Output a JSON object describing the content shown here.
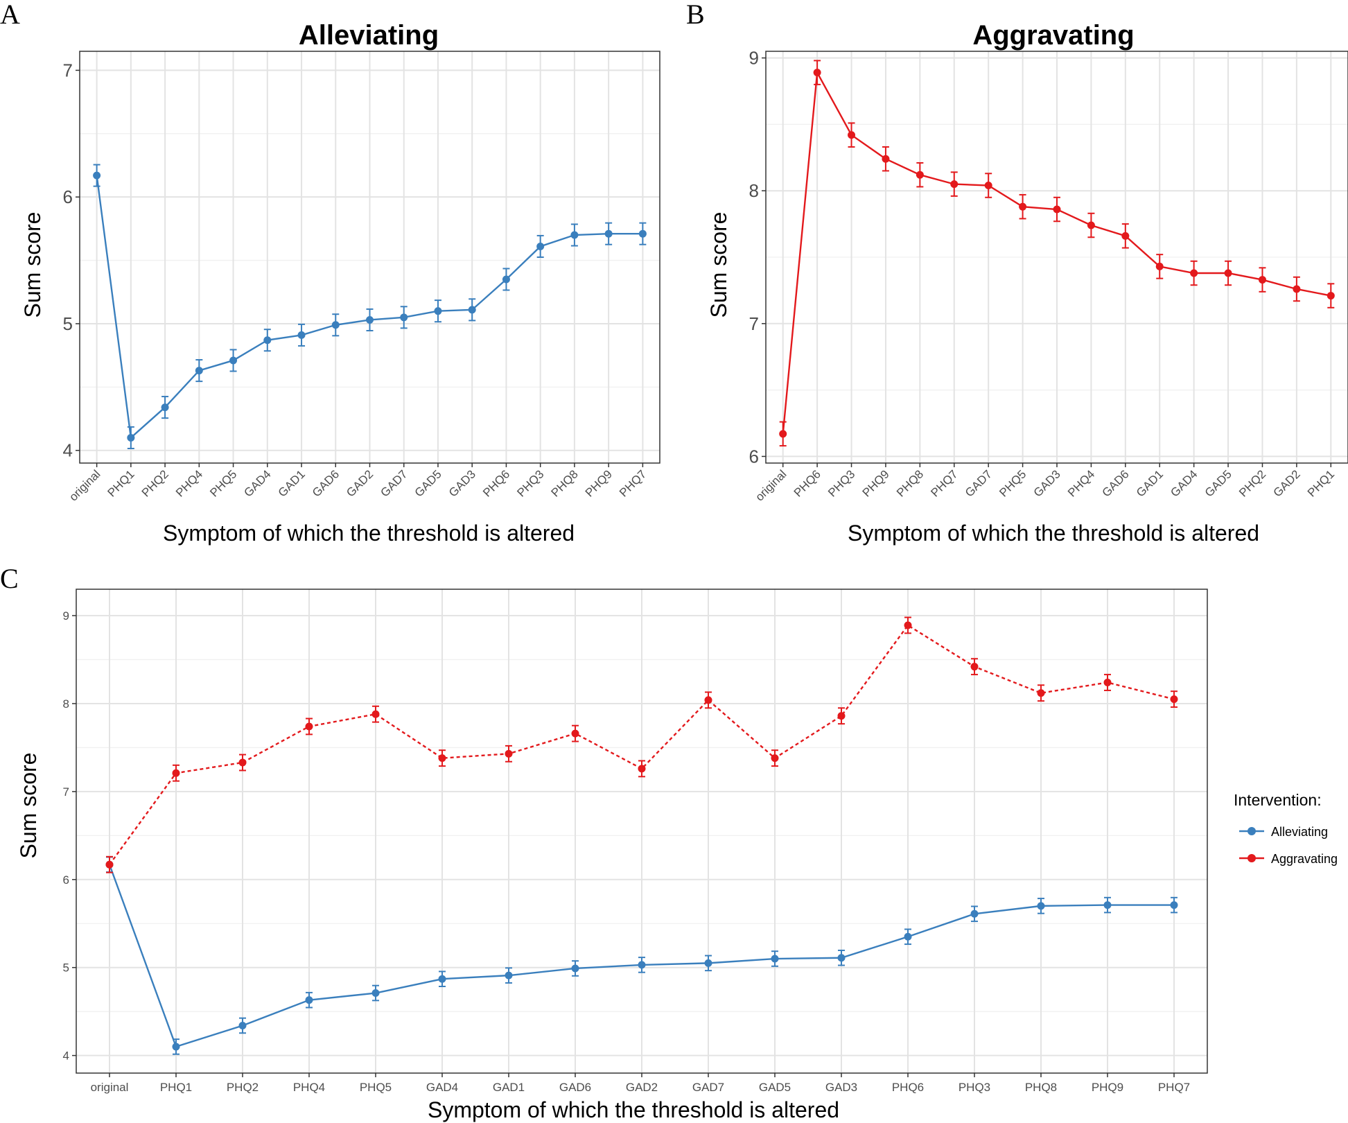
{
  "chart_data": [
    {
      "panel": "A",
      "type": "line",
      "title": "Alleviating",
      "xlabel": "Symptom of which the threshold is altered",
      "ylabel": "Sum score",
      "ylim": [
        3.9,
        7.15
      ],
      "yticks": [
        4,
        5,
        6,
        7
      ],
      "categories": [
        "original",
        "PHQ1",
        "PHQ2",
        "PHQ4",
        "PHQ5",
        "GAD4",
        "GAD1",
        "GAD6",
        "GAD2",
        "GAD7",
        "GAD5",
        "GAD3",
        "PHQ6",
        "PHQ3",
        "PHQ8",
        "PHQ9",
        "PHQ7"
      ],
      "series": [
        {
          "name": "Alleviating",
          "color": "#3a7fbd",
          "dash": "solid",
          "values": [
            6.17,
            4.1,
            4.34,
            4.63,
            4.71,
            4.87,
            4.91,
            4.99,
            5.03,
            5.05,
            5.1,
            5.11,
            5.35,
            5.61,
            5.7,
            5.71,
            5.71
          ],
          "err": 0.085
        }
      ]
    },
    {
      "panel": "B",
      "type": "line",
      "title": "Aggravating",
      "xlabel": "Symptom of which the threshold is altered",
      "ylabel": "Sum score",
      "ylim": [
        5.95,
        9.05
      ],
      "yticks": [
        6,
        7,
        8,
        9
      ],
      "categories": [
        "original",
        "PHQ6",
        "PHQ3",
        "PHQ9",
        "PHQ8",
        "PHQ7",
        "GAD7",
        "PHQ5",
        "GAD3",
        "PHQ4",
        "GAD6",
        "GAD1",
        "GAD4",
        "GAD5",
        "PHQ2",
        "GAD2",
        "PHQ1"
      ],
      "series": [
        {
          "name": "Aggravating",
          "color": "#e3191c",
          "dash": "solid",
          "values": [
            6.17,
            8.89,
            8.42,
            8.24,
            8.12,
            8.05,
            8.04,
            7.88,
            7.86,
            7.74,
            7.66,
            7.43,
            7.38,
            7.38,
            7.33,
            7.26,
            7.21
          ],
          "err": 0.09
        }
      ]
    },
    {
      "panel": "C",
      "type": "line",
      "title": "",
      "xlabel": "Symptom of which the threshold is altered",
      "ylabel": "Sum score",
      "ylim": [
        3.8,
        9.3
      ],
      "yticks": [
        4,
        5,
        6,
        7,
        8,
        9
      ],
      "categories": [
        "original",
        "PHQ1",
        "PHQ2",
        "PHQ4",
        "PHQ5",
        "GAD4",
        "GAD1",
        "GAD6",
        "GAD2",
        "GAD7",
        "GAD5",
        "GAD3",
        "PHQ6",
        "PHQ3",
        "PHQ8",
        "PHQ9",
        "PHQ7"
      ],
      "series": [
        {
          "name": "Alleviating",
          "color": "#3a7fbd",
          "dash": "solid",
          "values": [
            6.17,
            4.1,
            4.34,
            4.63,
            4.71,
            4.87,
            4.91,
            4.99,
            5.03,
            5.05,
            5.1,
            5.11,
            5.35,
            5.61,
            5.7,
            5.71,
            5.71
          ],
          "err": 0.085
        },
        {
          "name": "Aggravating",
          "color": "#e3191c",
          "dash": "dashed",
          "values": [
            6.17,
            7.21,
            7.33,
            7.74,
            7.88,
            7.38,
            7.43,
            7.66,
            7.26,
            8.04,
            7.38,
            7.86,
            8.89,
            8.42,
            8.12,
            8.24,
            8.05
          ],
          "err": 0.09
        }
      ],
      "legend": {
        "title": "Intervention:",
        "position": "right"
      }
    }
  ]
}
